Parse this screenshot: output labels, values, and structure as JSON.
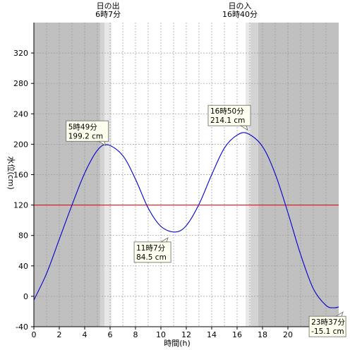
{
  "chart_data": {
    "type": "line",
    "xlabel": "時間(h)",
    "ylabel": "水位(cm)",
    "xlim": [
      0,
      24
    ],
    "ylim": [
      -40,
      360
    ],
    "x_ticks": [
      0,
      2,
      4,
      6,
      8,
      10,
      12,
      14,
      16,
      18,
      20
    ],
    "x_tick_labels": [
      "0",
      "2",
      "4",
      "6",
      "8",
      "10",
      "12",
      "14",
      "16",
      "18",
      "20"
    ],
    "y_ticks": [
      -40,
      0,
      40,
      80,
      120,
      160,
      200,
      240,
      280,
      320
    ],
    "y_tick_labels": [
      "-40",
      "0",
      "40",
      "80",
      "120",
      "160",
      "200",
      "240",
      "280",
      "320"
    ],
    "grid": true,
    "sunrise": {
      "title": "日の出",
      "time": "6時7分",
      "hour": 6.117
    },
    "sunset": {
      "title": "日の入",
      "time": "16時40分",
      "hour": 16.667
    },
    "reference_line": {
      "value": 120,
      "color": "#dd0000"
    },
    "series": [
      {
        "color": "#0000cc",
        "x": [
          0,
          1,
          2,
          3,
          4,
          5,
          5.817,
          7,
          8,
          9,
          10,
          11.117,
          12,
          13,
          14,
          15,
          16,
          16.833,
          18,
          19,
          20,
          21,
          22,
          23,
          23.617,
          24
        ],
        "y": [
          -5,
          30,
          75,
          120,
          162,
          192,
          199.2,
          185,
          154,
          116,
          92,
          84.5,
          93,
          121,
          160,
          195,
          212,
          214.1,
          197,
          161,
          110,
          55,
          10,
          -12,
          -15.1,
          -14
        ]
      }
    ],
    "annotations": [
      {
        "time": "5時49分",
        "level": "199.2 cm",
        "hour": 5.817,
        "value": 199.2
      },
      {
        "time": "11時7分",
        "level": "84.5 cm",
        "hour": 11.117,
        "value": 84.5
      },
      {
        "time": "16時50分",
        "level": "214.1 cm",
        "hour": 16.833,
        "value": 214.1
      },
      {
        "time": "23時37分",
        "level": "-15.1 cm",
        "hour": 23.617,
        "value": -15.1
      }
    ],
    "colors": {
      "night": "#c0c0c0",
      "twilight_dark": "#d3d3d3",
      "twilight_light": "#e8e8e8",
      "day": "#ffffff",
      "callout_fill": "#ffffee"
    }
  }
}
